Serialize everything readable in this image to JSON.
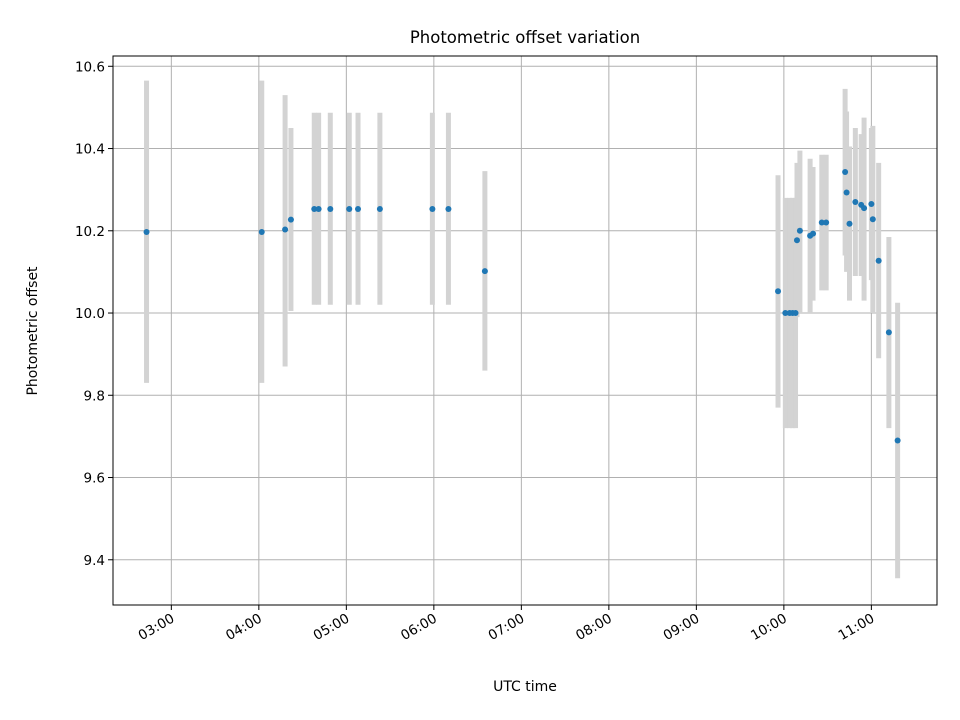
{
  "chart_data": {
    "type": "scatter",
    "title": "Photometric offset variation",
    "xlabel": "UTC time",
    "ylabel": "Photometric offset",
    "x_unit": "hours UTC",
    "xlim": [
      "02:20",
      "11:45"
    ],
    "ylim": [
      9.29,
      10.625
    ],
    "x_ticks": [
      "03:00",
      "04:00",
      "05:00",
      "06:00",
      "07:00",
      "08:00",
      "09:00",
      "10:00",
      "11:00"
    ],
    "y_ticks": [
      9.4,
      9.6,
      9.8,
      10.0,
      10.2,
      10.4,
      10.6
    ],
    "y_tick_labels": [
      "9.4",
      "9.6",
      "9.8",
      "10.0",
      "10.2",
      "10.4",
      "10.6"
    ],
    "grid": true,
    "legend": "none",
    "colors": {
      "point": "#1f77b4",
      "errorbar": "#d3d3d3",
      "grid": "#b0b0b0"
    },
    "points": [
      {
        "t": "02:43",
        "y": 10.197,
        "lo": 9.83,
        "hi": 10.565
      },
      {
        "t": "04:02",
        "y": 10.197,
        "lo": 9.83,
        "hi": 10.565
      },
      {
        "t": "04:18",
        "y": 10.203,
        "lo": 9.87,
        "hi": 10.53
      },
      {
        "t": "04:22",
        "y": 10.227,
        "lo": 10.005,
        "hi": 10.45
      },
      {
        "t": "04:38",
        "y": 10.253,
        "lo": 10.02,
        "hi": 10.487
      },
      {
        "t": "04:41",
        "y": 10.253,
        "lo": 10.02,
        "hi": 10.487
      },
      {
        "t": "04:49",
        "y": 10.253,
        "lo": 10.02,
        "hi": 10.487
      },
      {
        "t": "05:02",
        "y": 10.253,
        "lo": 10.02,
        "hi": 10.487
      },
      {
        "t": "05:08",
        "y": 10.253,
        "lo": 10.02,
        "hi": 10.487
      },
      {
        "t": "05:23",
        "y": 10.253,
        "lo": 10.02,
        "hi": 10.487
      },
      {
        "t": "05:59",
        "y": 10.253,
        "lo": 10.02,
        "hi": 10.487
      },
      {
        "t": "06:10",
        "y": 10.253,
        "lo": 10.02,
        "hi": 10.487
      },
      {
        "t": "06:35",
        "y": 10.102,
        "lo": 9.86,
        "hi": 10.345
      },
      {
        "t": "09:56",
        "y": 10.053,
        "lo": 9.77,
        "hi": 10.335
      },
      {
        "t": "10:01",
        "y": 10.0,
        "lo": 9.72,
        "hi": 10.28
      },
      {
        "t": "10:04",
        "y": 10.0,
        "lo": 9.72,
        "hi": 10.28
      },
      {
        "t": "10:06",
        "y": 10.0,
        "lo": 9.72,
        "hi": 10.28
      },
      {
        "t": "10:08",
        "y": 10.0,
        "lo": 9.72,
        "hi": 10.28
      },
      {
        "t": "10:09",
        "y": 10.177,
        "lo": 9.99,
        "hi": 10.365
      },
      {
        "t": "10:11",
        "y": 10.2,
        "lo": 10.0,
        "hi": 10.395
      },
      {
        "t": "10:18",
        "y": 10.188,
        "lo": 10.0,
        "hi": 10.375
      },
      {
        "t": "10:20",
        "y": 10.193,
        "lo": 10.03,
        "hi": 10.355
      },
      {
        "t": "10:26",
        "y": 10.22,
        "lo": 10.055,
        "hi": 10.385
      },
      {
        "t": "10:29",
        "y": 10.22,
        "lo": 10.055,
        "hi": 10.385
      },
      {
        "t": "10:42",
        "y": 10.343,
        "lo": 10.14,
        "hi": 10.545
      },
      {
        "t": "10:43",
        "y": 10.293,
        "lo": 10.1,
        "hi": 10.49
      },
      {
        "t": "10:45",
        "y": 10.217,
        "lo": 10.03,
        "hi": 10.405
      },
      {
        "t": "10:49",
        "y": 10.27,
        "lo": 10.09,
        "hi": 10.45
      },
      {
        "t": "10:53",
        "y": 10.263,
        "lo": 10.09,
        "hi": 10.435
      },
      {
        "t": "10:55",
        "y": 10.255,
        "lo": 10.03,
        "hi": 10.475
      },
      {
        "t": "11:00",
        "y": 10.265,
        "lo": 10.08,
        "hi": 10.45
      },
      {
        "t": "11:01",
        "y": 10.228,
        "lo": 10.0,
        "hi": 10.455
      },
      {
        "t": "11:05",
        "y": 10.127,
        "lo": 9.89,
        "hi": 10.365
      },
      {
        "t": "11:12",
        "y": 9.953,
        "lo": 9.72,
        "hi": 10.185
      },
      {
        "t": "11:18",
        "y": 9.69,
        "lo": 9.355,
        "hi": 10.025
      }
    ]
  }
}
